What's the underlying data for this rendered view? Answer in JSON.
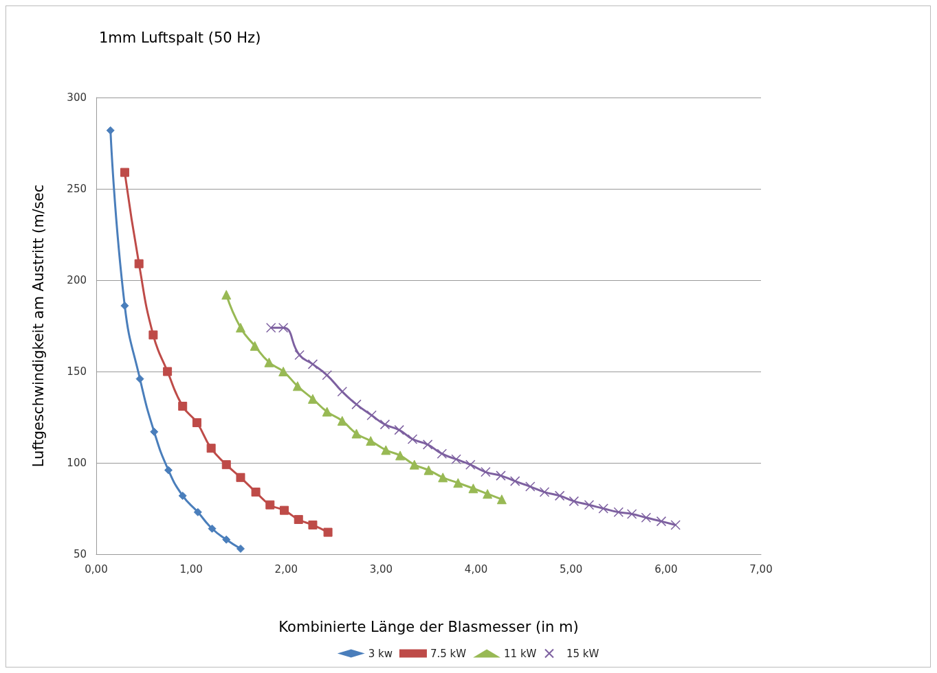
{
  "chart_data": {
    "type": "line",
    "title": "1mm Luftspalt (50 Hz)",
    "xlabel": "Kombinierte Länge der Blasmesser (in m)",
    "ylabel": "Luftgeschwindigkeit am Austritt (m/sec",
    "xlim": [
      0,
      7
    ],
    "xticks": [
      {
        "value": 0,
        "label": "0,00"
      },
      {
        "value": 1,
        "label": "1,00"
      },
      {
        "value": 2,
        "label": "2,00"
      },
      {
        "value": 3,
        "label": "3,00"
      },
      {
        "value": 4,
        "label": "4,00"
      },
      {
        "value": 5,
        "label": "5,00"
      },
      {
        "value": 6,
        "label": "6,00"
      },
      {
        "value": 7,
        "label": "7,00"
      }
    ],
    "ylim": [
      50,
      300
    ],
    "yticks": [
      50,
      100,
      150,
      200,
      250,
      300
    ],
    "grid": "y",
    "legend": "bottom",
    "series": [
      {
        "name": "3 kw",
        "color": "#4a7ebb",
        "marker": "diamond",
        "x": [
          0.15,
          0.3,
          0.46,
          0.61,
          0.76,
          0.91,
          1.07,
          1.22,
          1.37,
          1.52
        ],
        "values": [
          282,
          186,
          146,
          117,
          96,
          82,
          73,
          64,
          58,
          53
        ]
      },
      {
        "name": "7.5 kW",
        "color": "#be4b48",
        "marker": "square",
        "x": [
          0.3,
          0.45,
          0.6,
          0.75,
          0.91,
          1.06,
          1.21,
          1.37,
          1.52,
          1.68,
          1.83,
          1.98,
          2.13,
          2.28,
          2.44
        ],
        "values": [
          259,
          209,
          170,
          150,
          131,
          122,
          108,
          99,
          92,
          84,
          77,
          74,
          69,
          66,
          62
        ]
      },
      {
        "name": "11 kW",
        "color": "#98b954",
        "marker": "triangle",
        "x": [
          1.37,
          1.52,
          1.67,
          1.82,
          1.97,
          2.12,
          2.28,
          2.43,
          2.59,
          2.74,
          2.89,
          3.05,
          3.2,
          3.35,
          3.5,
          3.65,
          3.81,
          3.97,
          4.12,
          4.27
        ],
        "values": [
          192,
          174,
          164,
          155,
          150,
          142,
          135,
          128,
          123,
          116,
          112,
          107,
          104,
          99,
          96,
          92,
          89,
          86,
          83,
          80
        ]
      },
      {
        "name": "15 kW",
        "color": "#7d60a0",
        "marker": "cross",
        "x": [
          1.84,
          1.97,
          2.14,
          2.28,
          2.43,
          2.59,
          2.74,
          2.9,
          3.04,
          3.19,
          3.33,
          3.49,
          3.64,
          3.79,
          3.94,
          4.1,
          4.26,
          4.41,
          4.57,
          4.72,
          4.88,
          5.03,
          5.19,
          5.34,
          5.5,
          5.64,
          5.79,
          5.95,
          6.1
        ],
        "values": [
          174,
          174,
          159,
          154,
          148,
          139,
          132,
          126,
          121,
          118,
          113,
          110,
          105,
          102,
          99,
          95,
          93,
          90,
          87,
          84,
          82,
          79,
          77,
          75,
          73,
          72,
          70,
          68,
          66
        ]
      }
    ]
  }
}
